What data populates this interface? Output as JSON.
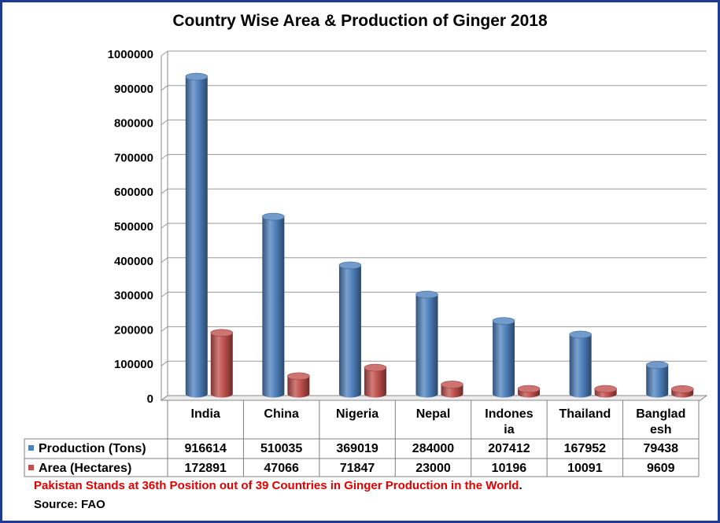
{
  "chart_data": {
    "type": "bar",
    "title": "Country Wise Area & Production of Ginger 2018",
    "categories": [
      "India",
      "China",
      "Nigeria",
      "Nepal",
      "Indonesia",
      "Thailand",
      "Bangladesh"
    ],
    "category_labels": [
      [
        "India"
      ],
      [
        "China"
      ],
      [
        "Nigeria"
      ],
      [
        "Nepal"
      ],
      [
        "Indones",
        "ia"
      ],
      [
        "Thailand"
      ],
      [
        "Banglad",
        "esh"
      ]
    ],
    "series": [
      {
        "name": "Production (Tons)",
        "color": "#4f81bd",
        "values": [
          916614,
          510035,
          369019,
          284000,
          207412,
          167952,
          79438
        ]
      },
      {
        "name": "Area (Hectares)",
        "color": "#c0504d",
        "values": [
          172891,
          47066,
          71847,
          23000,
          10196,
          10091,
          9609
        ]
      }
    ],
    "ylim": [
      0,
      1000000
    ],
    "yticks": [
      0,
      100000,
      200000,
      300000,
      400000,
      500000,
      600000,
      700000,
      800000,
      900000,
      1000000
    ],
    "style": "3d-cylinder",
    "legend": "data-table"
  },
  "footnote": {
    "text": "Pakistan Stands at 36th Position out of 39 Countries in Ginger Production in the World",
    "end": "."
  },
  "source": "Source: FAO"
}
